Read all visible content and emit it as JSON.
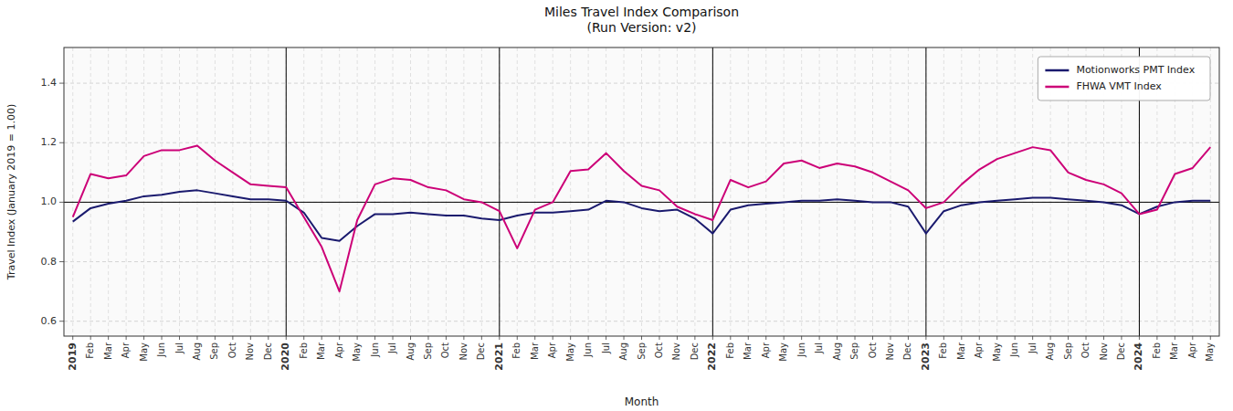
{
  "chart_data": {
    "type": "line",
    "title": "Miles Travel Index Comparison\n(Run Version: v2)",
    "x_label": "Month",
    "y_label": "Travel Index (January 2019 = 1.00)",
    "categories": [
      "2019",
      "Feb",
      "Mar",
      "Apr",
      "May",
      "Jun",
      "Jul",
      "Aug",
      "Sep",
      "Oct",
      "Nov",
      "Dec",
      "2020",
      "Feb",
      "Mar",
      "Apr",
      "May",
      "Jun",
      "Jul",
      "Aug",
      "Sep",
      "Oct",
      "Nov",
      "Dec",
      "2021",
      "Feb",
      "Mar",
      "Apr",
      "May",
      "Jun",
      "Jul",
      "Aug",
      "Sep",
      "Oct",
      "Nov",
      "Dec",
      "2022",
      "Feb",
      "Mar",
      "Apr",
      "May",
      "Jun",
      "Jul",
      "Aug",
      "Sep",
      "Oct",
      "Nov",
      "Dec",
      "2023",
      "Feb",
      "Mar",
      "Apr",
      "May",
      "Jun",
      "Jul",
      "Aug",
      "Sep",
      "Oct",
      "Nov",
      "Dec",
      "2024",
      "Feb",
      "Mar",
      "Apr",
      "May"
    ],
    "series": [
      {
        "name": "Motionworks PMT Index",
        "color": "#1a1a6e",
        "values": [
          0.935,
          0.98,
          0.995,
          1.005,
          1.02,
          1.025,
          1.035,
          1.04,
          1.03,
          1.02,
          1.01,
          1.01,
          1.005,
          0.965,
          0.88,
          0.87,
          0.92,
          0.96,
          0.96,
          0.965,
          0.96,
          0.955,
          0.955,
          0.945,
          0.94,
          0.955,
          0.965,
          0.965,
          0.97,
          0.975,
          1.005,
          1.0,
          0.98,
          0.97,
          0.975,
          0.945,
          0.895,
          0.975,
          0.99,
          0.995,
          1.0,
          1.005,
          1.005,
          1.01,
          1.005,
          1.0,
          1.0,
          0.985,
          0.895,
          0.97,
          0.99,
          1.0,
          1.005,
          1.01,
          1.015,
          1.015,
          1.01,
          1.005,
          1.0,
          0.99,
          0.96,
          0.985,
          1.0,
          1.005,
          1.005
        ]
      },
      {
        "name": "FHWA VMT Index",
        "color": "#cc0077",
        "values": [
          0.95,
          1.095,
          1.08,
          1.09,
          1.155,
          1.175,
          1.175,
          1.19,
          1.14,
          1.1,
          1.06,
          1.055,
          1.05,
          0.95,
          0.85,
          0.7,
          0.94,
          1.06,
          1.08,
          1.075,
          1.05,
          1.04,
          1.01,
          1.0,
          0.97,
          0.845,
          0.975,
          1.0,
          1.105,
          1.11,
          1.165,
          1.105,
          1.055,
          1.04,
          0.985,
          0.96,
          0.94,
          1.075,
          1.05,
          1.07,
          1.13,
          1.14,
          1.115,
          1.13,
          1.12,
          1.1,
          1.07,
          1.04,
          0.98,
          1.0,
          1.06,
          1.11,
          1.145,
          1.165,
          1.185,
          1.175,
          1.1,
          1.075,
          1.06,
          1.03,
          0.96,
          0.975,
          1.095,
          1.115,
          1.185
        ]
      }
    ],
    "ylim": [
      0.55,
      1.52
    ],
    "yticks": [
      0.6,
      0.8,
      {
        "value": 1,
        "label": "1.0"
      },
      1.2,
      1.4
    ],
    "hline": 1,
    "vlines": [
      "2020",
      "2021",
      "2022",
      "2023",
      "2024"
    ],
    "grid": true,
    "legend": "upper right"
  }
}
